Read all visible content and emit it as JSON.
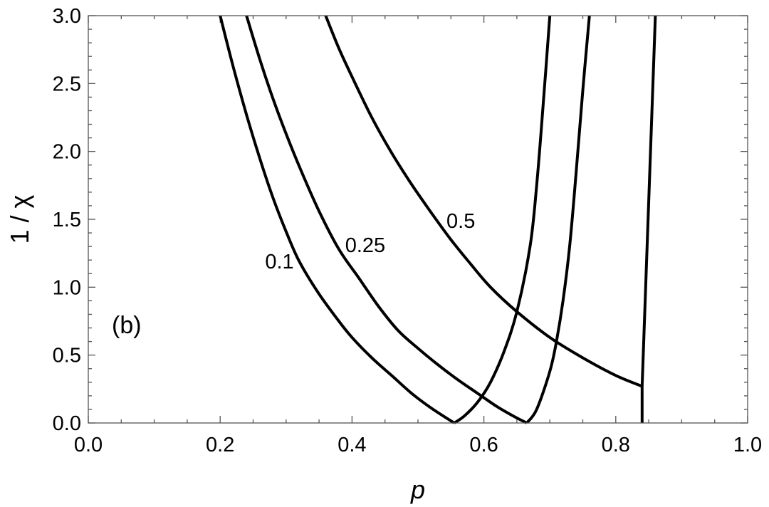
{
  "chart_data": {
    "type": "line",
    "title": "",
    "xlabel": "p",
    "ylabel": "1 / χ",
    "xlim": [
      0,
      1
    ],
    "ylim": [
      0,
      3
    ],
    "grid": false,
    "panel_label": "(b)",
    "x_ticks": [
      0,
      0.2,
      0.4,
      0.6,
      0.8,
      1.0
    ],
    "x_tick_labels": [
      "0.0",
      "0.2",
      "0.4",
      "0.6",
      "0.8",
      "1.0"
    ],
    "y_ticks": [
      0,
      0.5,
      1.0,
      1.5,
      2.0,
      2.5,
      3.0
    ],
    "y_tick_labels": [
      "0.0",
      "0.5",
      "1.0",
      "1.5",
      "2.0",
      "2.5",
      "3.0"
    ],
    "series": [
      {
        "name": "0.1",
        "x": [
          0.2,
          0.22,
          0.24,
          0.26,
          0.28,
          0.3,
          0.32,
          0.35,
          0.38,
          0.4,
          0.43,
          0.46,
          0.49,
          0.52,
          0.555
        ],
        "y": [
          3.0,
          2.62,
          2.27,
          1.95,
          1.66,
          1.41,
          1.19,
          0.95,
          0.75,
          0.63,
          0.48,
          0.35,
          0.22,
          0.11,
          0.0
        ]
      },
      {
        "name": "",
        "x": [
          0.555,
          0.57,
          0.59,
          0.61,
          0.63,
          0.65,
          0.67,
          0.68,
          0.69,
          0.7
        ],
        "y": [
          0.0,
          0.05,
          0.15,
          0.3,
          0.52,
          0.82,
          1.3,
          1.75,
          2.35,
          3.0
        ]
      },
      {
        "name": "0.25",
        "x": [
          0.24,
          0.26,
          0.28,
          0.3,
          0.32,
          0.35,
          0.38,
          0.41,
          0.44,
          0.47,
          0.5,
          0.53,
          0.56,
          0.59,
          0.62,
          0.645,
          0.665
        ],
        "y": [
          3.0,
          2.68,
          2.39,
          2.13,
          1.89,
          1.56,
          1.28,
          1.07,
          0.86,
          0.68,
          0.55,
          0.43,
          0.32,
          0.22,
          0.12,
          0.05,
          0.0
        ]
      },
      {
        "name": "",
        "x": [
          0.665,
          0.68,
          0.7,
          0.71,
          0.72,
          0.73,
          0.74,
          0.75,
          0.76
        ],
        "y": [
          0.0,
          0.1,
          0.38,
          0.6,
          0.9,
          1.3,
          1.85,
          2.45,
          3.0
        ]
      },
      {
        "name": "0.5",
        "x": [
          0.36,
          0.38,
          0.4,
          0.43,
          0.46,
          0.49,
          0.52,
          0.55,
          0.58,
          0.61,
          0.65,
          0.7,
          0.75,
          0.8,
          0.84
        ],
        "y": [
          3.0,
          2.76,
          2.55,
          2.25,
          1.99,
          1.76,
          1.55,
          1.35,
          1.17,
          1.0,
          0.82,
          0.63,
          0.48,
          0.35,
          0.27
        ]
      },
      {
        "name": "",
        "x": [
          0.84,
          0.84
        ],
        "y": [
          0.27,
          0.0
        ]
      },
      {
        "name": "",
        "x": [
          0.84,
          0.86
        ],
        "y": [
          0.27,
          3.0
        ]
      }
    ],
    "annotations": [
      {
        "text": "0.1",
        "x": 0.29,
        "y": 1.19
      },
      {
        "text": "0.25",
        "x": 0.42,
        "y": 1.31
      },
      {
        "text": "0.5",
        "x": 0.565,
        "y": 1.49
      }
    ]
  }
}
